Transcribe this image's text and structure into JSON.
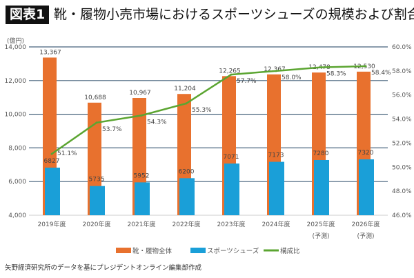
{
  "header": {
    "badge": "図表1",
    "title": "靴・履物小売市場におけるスポーツシューズの規模および割合"
  },
  "footer": {
    "source": "矢野経済研究所のデータを基にプレジデントオンライン編集部作成"
  },
  "chart_data": {
    "type": "bar",
    "title": "靴・履物小売市場におけるスポーツシューズの規模および割合",
    "ylabel": "(億円)",
    "ylim": [
      4000,
      14000
    ],
    "y_ticks": [
      "4,000",
      "6,000",
      "8,000",
      "10,000",
      "12,000",
      "14,000"
    ],
    "y2lim": [
      46.0,
      60.0
    ],
    "y2_ticks": [
      "46.0%",
      "48.0%",
      "50.0%",
      "52.0%",
      "54.0%",
      "56.0%",
      "58.0%",
      "60.0%"
    ],
    "grid": true,
    "legend_position": "bottom",
    "categories": [
      {
        "year": "2019年度",
        "note": ""
      },
      {
        "year": "2020年度",
        "note": ""
      },
      {
        "year": "2021年度",
        "note": ""
      },
      {
        "year": "2022年度",
        "note": ""
      },
      {
        "year": "2023年度",
        "note": ""
      },
      {
        "year": "2024年度",
        "note": ""
      },
      {
        "year": "2025年度",
        "note": "(予測)"
      },
      {
        "year": "2026年度",
        "note": "(予測)"
      }
    ],
    "series": [
      {
        "name": "靴・履物全体",
        "type": "bar",
        "axis": "left",
        "color": "#E8712E",
        "values": [
          13367,
          10688,
          10967,
          11204,
          12265,
          12367,
          12478,
          12530
        ],
        "labels": [
          "13,367",
          "10,688",
          "10,967",
          "11,204",
          "12,265",
          "12,367",
          "12,478",
          "12,530"
        ]
      },
      {
        "name": "スポーツシューズ",
        "type": "bar",
        "axis": "left",
        "color": "#1A9FD8",
        "values": [
          6827,
          5735,
          5952,
          6200,
          7071,
          7173,
          7280,
          7320
        ],
        "labels": [
          "6827",
          "5735",
          "5952",
          "6200",
          "7071",
          "7173",
          "7280",
          "7320"
        ]
      },
      {
        "name": "構成比",
        "type": "line",
        "axis": "right",
        "color": "#5BA531",
        "values": [
          51.1,
          53.7,
          54.3,
          55.3,
          57.7,
          58.0,
          58.3,
          58.4
        ],
        "labels": [
          "51.1%",
          "53.7%",
          "54.3%",
          "55.3%",
          "57.7%",
          "58.0%",
          "58.3%",
          "58.4%"
        ]
      }
    ]
  }
}
